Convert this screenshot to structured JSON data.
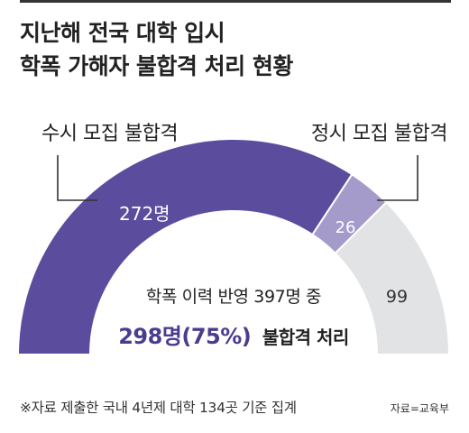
{
  "title": {
    "line1": "지난해 전국 대학 입시",
    "line2": "학폭 가해자 불합격 처리 현황"
  },
  "colors": {
    "susi": "#5b4c9e",
    "jeongsi": "#a59bcb",
    "remaining": "#e2e3e5",
    "highlight": "#4a3d8f",
    "text": "#222222"
  },
  "chart_data": {
    "type": "pie",
    "shape": "semicircle",
    "title": "지난해 전국 대학 입시 학폭 가해자 불합격 처리 현황",
    "segments": [
      {
        "label": "수시 모집 불합격",
        "value": 272,
        "value_label": "272명",
        "color": "#5b4c9e"
      },
      {
        "label": "정시 모집 불합격",
        "value": 26,
        "value_label": "26",
        "color": "#a59bcb"
      },
      {
        "label": "",
        "value": 99,
        "value_label": "99",
        "color": "#e2e3e5"
      }
    ],
    "total": 397,
    "center_text": {
      "line1": "학폭 이력 반영 397명 중",
      "highlight": "298명(75%)",
      "suffix": "불합격 처리"
    }
  },
  "footnote": "※자료 제출한 국내 4년제 대학 134곳 기준 집계",
  "source": "자료=교육부"
}
